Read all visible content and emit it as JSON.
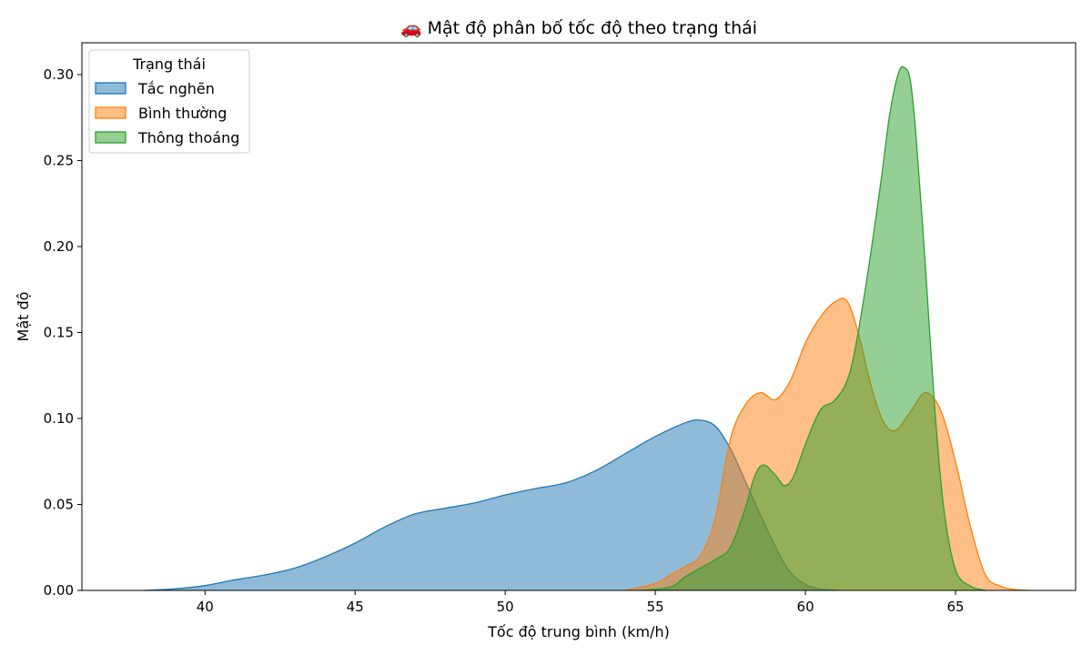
{
  "chart_data": {
    "type": "area",
    "title": "🚗 Mật độ phân bố tốc độ theo trạng thái",
    "xlabel": "Tốc độ trung bình (km/h)",
    "ylabel": "Mật độ",
    "xlim": [
      35.9,
      69.0
    ],
    "ylim": [
      0.0,
      0.3185
    ],
    "x_ticks": [
      40,
      45,
      50,
      55,
      60,
      65
    ],
    "y_ticks": [
      0.0,
      0.05,
      0.1,
      0.15,
      0.2,
      0.25,
      0.3
    ],
    "x_tick_labels": [
      "40",
      "45",
      "50",
      "55",
      "60",
      "65"
    ],
    "y_tick_labels": [
      "0.00",
      "0.05",
      "0.10",
      "0.15",
      "0.20",
      "0.25",
      "0.30"
    ],
    "grid": false,
    "legend": {
      "title": "Trạng thái",
      "position": "top-left"
    },
    "series": [
      {
        "name": "Tắc nghẽn",
        "color": "#1f77b4",
        "fill_opacity": 0.5,
        "x": [
          38.0,
          39.0,
          40.0,
          41.0,
          42.0,
          43.0,
          44.0,
          45.0,
          46.0,
          47.0,
          48.0,
          49.0,
          50.0,
          51.0,
          52.0,
          53.0,
          54.0,
          55.0,
          56.0,
          56.5,
          57.0,
          57.5,
          58.0,
          58.5,
          59.0,
          59.5,
          60.0,
          60.5,
          61.0
        ],
        "y": [
          0.0,
          0.0009,
          0.0028,
          0.0062,
          0.009,
          0.013,
          0.0195,
          0.0275,
          0.037,
          0.0445,
          0.0478,
          0.051,
          0.0555,
          0.0592,
          0.0625,
          0.0695,
          0.0795,
          0.0895,
          0.0975,
          0.099,
          0.0955,
          0.0825,
          0.0635,
          0.044,
          0.0255,
          0.0105,
          0.0035,
          0.0008,
          0.0
        ]
      },
      {
        "name": "Bình thường",
        "color": "#ff7f0e",
        "fill_opacity": 0.5,
        "x": [
          54.0,
          55.0,
          55.5,
          56.0,
          56.5,
          57.0,
          57.5,
          58.0,
          58.5,
          59.0,
          59.5,
          60.0,
          60.5,
          61.0,
          61.4,
          61.8,
          62.2,
          62.6,
          63.0,
          63.5,
          64.0,
          64.5,
          65.0,
          65.5,
          66.0,
          66.5,
          67.0,
          67.5
        ],
        "y": [
          0.0,
          0.004,
          0.009,
          0.014,
          0.02,
          0.042,
          0.088,
          0.108,
          0.115,
          0.111,
          0.122,
          0.144,
          0.159,
          0.168,
          0.168,
          0.147,
          0.118,
          0.098,
          0.093,
          0.104,
          0.115,
          0.105,
          0.075,
          0.037,
          0.009,
          0.0025,
          0.0005,
          0.0
        ]
      },
      {
        "name": "Thông thoáng",
        "color": "#2ca02c",
        "fill_opacity": 0.5,
        "x": [
          54.5,
          55.5,
          56.0,
          56.5,
          57.0,
          57.5,
          58.0,
          58.3,
          58.6,
          59.0,
          59.3,
          59.6,
          60.0,
          60.5,
          61.0,
          61.5,
          62.0,
          62.5,
          62.8,
          63.1,
          63.3,
          63.5,
          63.7,
          64.0,
          64.3,
          64.6,
          65.0,
          65.5,
          66.0
        ],
        "y": [
          0.0,
          0.002,
          0.008,
          0.013,
          0.018,
          0.025,
          0.048,
          0.066,
          0.073,
          0.067,
          0.061,
          0.066,
          0.085,
          0.105,
          0.111,
          0.128,
          0.176,
          0.236,
          0.276,
          0.301,
          0.304,
          0.296,
          0.261,
          0.188,
          0.108,
          0.049,
          0.012,
          0.0025,
          0.0
        ]
      }
    ]
  }
}
